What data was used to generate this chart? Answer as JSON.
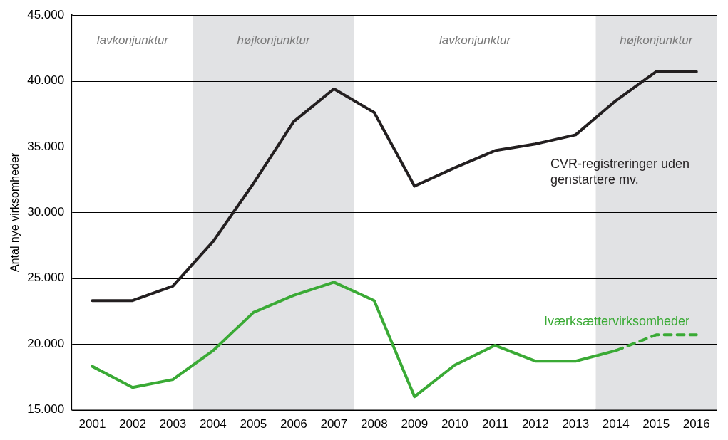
{
  "chart_data": {
    "type": "line",
    "ylabel": "Antal nye virksomheder",
    "categories": [
      "2001",
      "2002",
      "2003",
      "2004",
      "2005",
      "2006",
      "2007",
      "2008",
      "2009",
      "2010",
      "2011",
      "2012",
      "2013",
      "2014",
      "2015",
      "2016"
    ],
    "series": [
      {
        "name": "CVR-registreringer uden genstartere mv.",
        "color": "#231f20",
        "values": [
          23300,
          23300,
          24400,
          27800,
          32200,
          36900,
          39400,
          37600,
          32000,
          33400,
          34700,
          35200,
          35900,
          38500,
          40700,
          40700
        ]
      },
      {
        "name": "Iværksættervirksomheder",
        "color": "#3aaa35",
        "values": [
          18300,
          16700,
          17300,
          19500,
          22400,
          23700,
          24700,
          23300,
          16000,
          18400,
          19900,
          18700,
          18700,
          19500,
          null,
          null
        ]
      },
      {
        "color": "#3aaa35",
        "line_style": "dashed",
        "values": [
          null,
          null,
          null,
          null,
          null,
          null,
          null,
          null,
          null,
          null,
          null,
          null,
          null,
          19500,
          20700,
          20700
        ]
      }
    ],
    "bands": [
      {
        "axis": "x",
        "from": "2001",
        "to": "2003",
        "label": "lavkonjunktur",
        "color": "#ffffff"
      },
      {
        "axis": "x",
        "from": "2004",
        "to": "2007",
        "label": "højkonjunktur",
        "color": "#e1e2e4"
      },
      {
        "axis": "x",
        "from": "2008",
        "to": "2013",
        "label": "lavkonjunktur",
        "color": "#ffffff"
      },
      {
        "axis": "x",
        "from": "2014",
        "to": "2016",
        "label": "højkonjunktur",
        "color": "#e1e2e4"
      }
    ],
    "ylim": [
      15000,
      45000
    ],
    "yticks": [
      {
        "value": 15000,
        "label": "15.000"
      },
      {
        "value": 20000,
        "label": "20.000"
      },
      {
        "value": 25000,
        "label": "25.000"
      },
      {
        "value": 30000,
        "label": "30.000"
      },
      {
        "value": 35000,
        "label": "35.000"
      },
      {
        "value": 40000,
        "label": "40.000"
      },
      {
        "value": 45000,
        "label": "45.000"
      }
    ],
    "grid": "y",
    "legend": false,
    "marker": "none",
    "line_style": "solid"
  }
}
